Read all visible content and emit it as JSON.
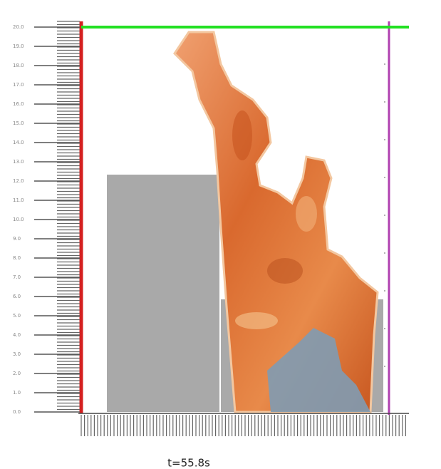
{
  "ruler": {
    "labels": [
      "20.0",
      "19.0",
      "18.0",
      "17.0",
      "16.0",
      "15.0",
      "14.0",
      "13.0",
      "12.0",
      "11.0",
      "10.0",
      "9.0",
      "8.0",
      "7.0",
      "6.0",
      "5.0",
      "4.0",
      "3.0",
      "2.0",
      "1.0",
      "0.0"
    ]
  },
  "caption": "t=55.8s"
}
